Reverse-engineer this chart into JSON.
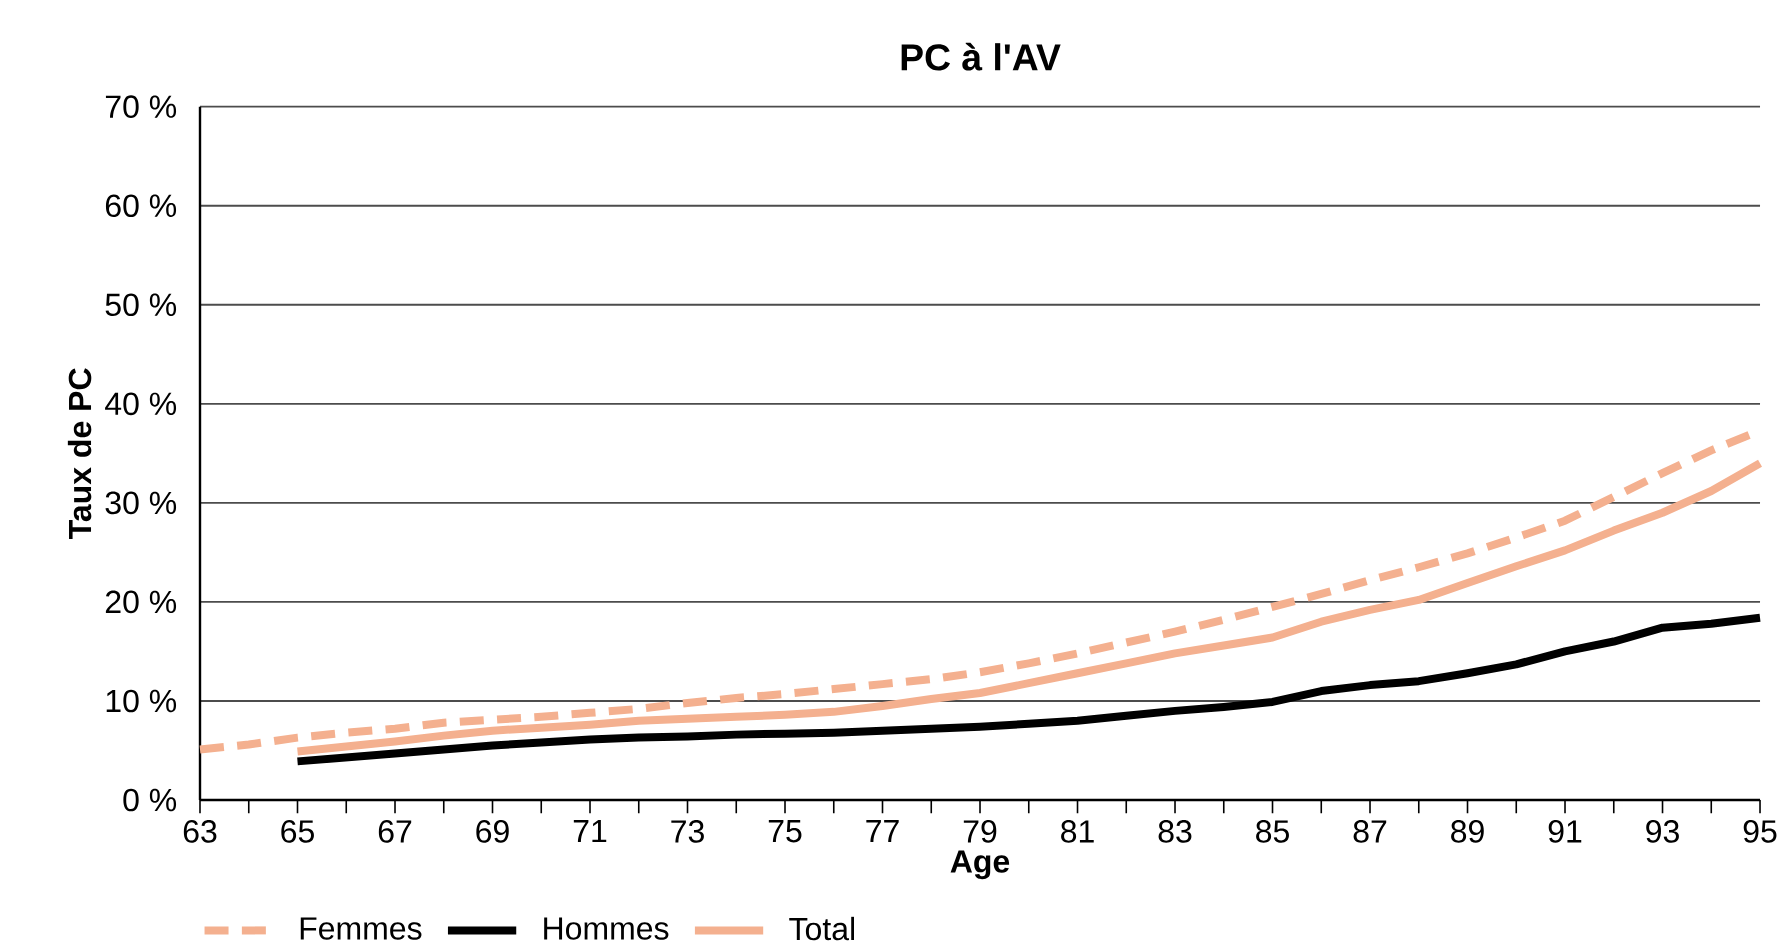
{
  "chart_data": {
    "type": "line",
    "title": "PC à l'AV",
    "xlabel": "Age",
    "ylabel": "Taux de PC",
    "xlim": [
      63,
      95
    ],
    "xticks": [
      63,
      {
        "value": 64,
        "label": null
      },
      65,
      {
        "value": 66,
        "label": null
      },
      67,
      {
        "value": 68,
        "label": null
      },
      69,
      {
        "value": 70,
        "label": null
      },
      71,
      {
        "value": 72,
        "label": null
      },
      73,
      {
        "value": 74,
        "label": null
      },
      75,
      {
        "value": 76,
        "label": null
      },
      77,
      {
        "value": 78,
        "label": null
      },
      79,
      {
        "value": 80,
        "label": null
      },
      81,
      {
        "value": 82,
        "label": null
      },
      83,
      {
        "value": 84,
        "label": null
      },
      85,
      {
        "value": 86,
        "label": null
      },
      87,
      {
        "value": 88,
        "label": null
      },
      89,
      {
        "value": 90,
        "label": null
      },
      91,
      {
        "value": 92,
        "label": null
      },
      93,
      {
        "value": 94,
        "label": null
      },
      95
    ],
    "ylim": [
      0,
      70
    ],
    "yticks": [
      {
        "value": 0,
        "label": "0 %"
      },
      {
        "value": 10,
        "label": "10 %"
      },
      {
        "value": 20,
        "label": "20 %"
      },
      {
        "value": 30,
        "label": "30 %"
      },
      {
        "value": 40,
        "label": "40 %"
      },
      {
        "value": 50,
        "label": "50 %"
      },
      {
        "value": 60,
        "label": "60 %"
      },
      {
        "value": 70,
        "label": "70 %"
      }
    ],
    "grid": "y",
    "legend": "bottom",
    "marker": "none",
    "series": [
      {
        "name": "Femmes",
        "color": "#f4b08f",
        "line_style": "dashed",
        "x": [
          63,
          64,
          65,
          66,
          67,
          68,
          69,
          70,
          71,
          72,
          73,
          74,
          75,
          76,
          77,
          78,
          79,
          80,
          81,
          82,
          83,
          84,
          85,
          86,
          87,
          88,
          89,
          90,
          91,
          92,
          93,
          94,
          95
        ],
        "values": [
          5.1,
          5.6,
          6.3,
          6.8,
          7.2,
          7.8,
          8.1,
          8.4,
          8.8,
          9.2,
          9.8,
          10.3,
          10.7,
          11.2,
          11.7,
          12.2,
          12.9,
          13.8,
          14.8,
          15.9,
          17,
          18.2,
          19.5,
          20.8,
          22.2,
          23.5,
          24.9,
          26.5,
          28.2,
          30.6,
          33,
          35.3,
          37.3
        ]
      },
      {
        "name": "Hommes",
        "color": "#000000",
        "line_style": "solid",
        "x": [
          65,
          66,
          67,
          68,
          69,
          70,
          71,
          72,
          73,
          74,
          75,
          76,
          77,
          78,
          79,
          80,
          81,
          82,
          83,
          84,
          85,
          86,
          87,
          88,
          89,
          90,
          91,
          92,
          93,
          94,
          95
        ],
        "values": [
          3.9,
          4.3,
          4.7,
          5.1,
          5.5,
          5.8,
          6.1,
          6.3,
          6.4,
          6.6,
          6.7,
          6.8,
          7,
          7.2,
          7.4,
          7.7,
          8,
          8.5,
          9,
          9.4,
          9.9,
          11,
          11.6,
          12,
          12.8,
          13.7,
          15,
          16,
          17.4,
          17.8,
          18.4
        ]
      },
      {
        "name": "Total",
        "color": "#f4b08f",
        "line_style": "solid",
        "x": [
          65,
          66,
          67,
          68,
          69,
          70,
          71,
          72,
          73,
          74,
          75,
          76,
          77,
          78,
          79,
          80,
          81,
          82,
          83,
          84,
          85,
          86,
          87,
          88,
          89,
          90,
          91,
          92,
          93,
          94,
          95
        ],
        "values": [
          4.9,
          5.4,
          5.9,
          6.5,
          7,
          7.3,
          7.6,
          8,
          8.2,
          8.4,
          8.6,
          8.9,
          9.5,
          10.2,
          10.8,
          11.8,
          12.8,
          13.8,
          14.8,
          15.6,
          16.4,
          18,
          19.2,
          20.2,
          21.9,
          23.6,
          25.2,
          27.2,
          29,
          31.2,
          34
        ]
      }
    ]
  }
}
